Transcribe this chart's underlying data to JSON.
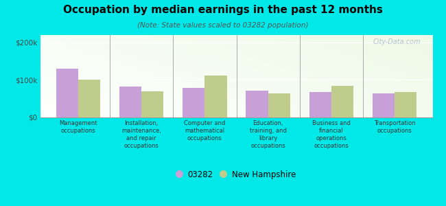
{
  "title": "Occupation by median earnings in the past 12 months",
  "subtitle": "(Note: State values scaled to 03282 population)",
  "categories": [
    "Management\noccupations",
    "Installation,\nmaintenance,\nand repair\noccupations",
    "Computer and\nmathematical\noccupations",
    "Education,\ntraining, and\nlibrary\noccupations",
    "Business and\nfinancial\noperations\noccupations",
    "Transportation\noccupations"
  ],
  "values_03282": [
    130000,
    82000,
    78000,
    72000,
    67000,
    65000
  ],
  "values_nh": [
    100000,
    70000,
    112000,
    65000,
    85000,
    68000
  ],
  "color_03282": "#c8a0d8",
  "color_nh": "#c0cc8c",
  "background_color": "#00e8e8",
  "ylim": [
    0,
    220000
  ],
  "yticks": [
    0,
    100000,
    200000
  ],
  "ytick_labels": [
    "$0",
    "$100k",
    "$200k"
  ],
  "bar_width": 0.35,
  "legend_label_03282": "03282",
  "legend_label_nh": "New Hampshire",
  "watermark": "City-Data.com"
}
